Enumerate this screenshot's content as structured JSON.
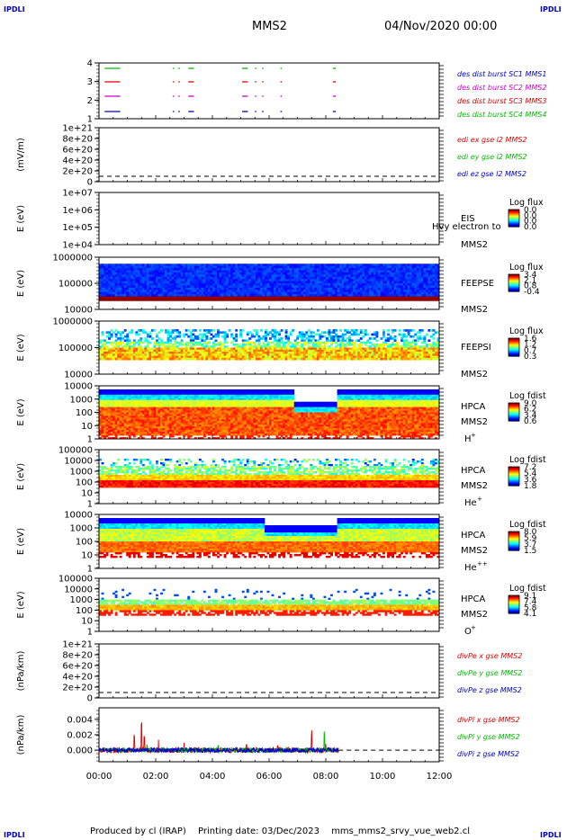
{
  "header": {
    "title": "MMS2",
    "date": "04/Nov/2020 00:00"
  },
  "corner_label": "IPDLI",
  "footer": {
    "produced": "Produced by cl (IRAP)",
    "printing": "Printing date: 03/Dec/2023",
    "file": "mms_mms2_srvy_vue_web2.cl"
  },
  "time_axis": {
    "labels": [
      "00:00",
      "02:00",
      "04:00",
      "06:00",
      "08:00",
      "10:00",
      "12:00"
    ],
    "range_hours": [
      0,
      12
    ]
  },
  "chart_data": [
    {
      "type": "line",
      "title": "",
      "ylabel": "",
      "ytick_labels": [
        "4",
        "3",
        "2",
        "1"
      ],
      "legend": [
        {
          "label": "des dist burst SC1 MMS1",
          "color": "#0000cc"
        },
        {
          "label": "des dist burst SC2 MMS2",
          "color": "#cc00cc"
        },
        {
          "label": "des dist burst SC3 MMS3",
          "color": "#dd0000"
        },
        {
          "label": "des dist burst SC4 MMS4",
          "color": "#00bb00"
        }
      ],
      "segments_hours": [
        [
          0.2,
          0.75
        ],
        [
          2.6,
          2.65
        ],
        [
          2.8,
          2.85
        ],
        [
          3.15,
          3.35
        ],
        [
          5.05,
          5.25
        ],
        [
          5.5,
          5.55
        ],
        [
          5.75,
          5.8
        ],
        [
          6.4,
          6.45
        ],
        [
          8.25,
          8.35
        ]
      ]
    },
    {
      "type": "line",
      "ylabel": "(mV/m)",
      "ytick_labels": [
        "1e+21",
        "8e+20",
        "6e+20",
        "4e+20",
        "2e+20",
        "0"
      ],
      "legend": [
        {
          "label": "edi ex gse l2 MMS2",
          "color": "#dd0000"
        },
        {
          "label": "edi ey gse l2 MMS2",
          "color": "#00bb00"
        },
        {
          "label": "edi ez gse l2 MMS2",
          "color": "#0000cc"
        }
      ]
    },
    {
      "type": "heatmap",
      "ylabel": "E (eV)",
      "ytick_labels": [
        "1e+07",
        "1e+06",
        "1e+05",
        "1e+04"
      ],
      "instrument": [
        "EIS",
        "MMS2"
      ],
      "overlay_text": "Hvy electron to",
      "colorbar": {
        "title": "Log flux",
        "ticks": [
          "0.0",
          "0.0",
          "0.0",
          "0.0"
        ]
      }
    },
    {
      "type": "heatmap",
      "ylabel": "E (eV)",
      "ytick_labels": [
        "1000000",
        "100000",
        "10000"
      ],
      "instrument": [
        "FEEPSE",
        "MMS2"
      ],
      "colorbar": {
        "title": "Log flux",
        "ticks": [
          "3.4",
          "2.1",
          "0.8",
          "-0.4"
        ]
      }
    },
    {
      "type": "heatmap",
      "ylabel": "E (eV)",
      "ytick_labels": [
        "1000000",
        "100000",
        "10000"
      ],
      "instrument": [
        "FEEPSI",
        "MMS2"
      ],
      "colorbar": {
        "title": "Log flux",
        "ticks": [
          "1.6",
          "1.2",
          "0.7",
          "0.3"
        ]
      }
    },
    {
      "type": "heatmap",
      "ylabel": "E (eV)",
      "ytick_labels": [
        "10000",
        "1000",
        "100",
        "10",
        "1"
      ],
      "instrument": [
        "HPCA",
        "MMS2"
      ],
      "species": "H",
      "species_charge": "+",
      "colorbar": {
        "title": "Log fdist",
        "ticks": [
          "9.0",
          "6.2",
          "3.4",
          "0.6"
        ]
      }
    },
    {
      "type": "heatmap",
      "ylabel": "E (eV)",
      "ytick_labels": [
        "100000",
        "10000",
        "1000",
        "100",
        "10",
        "1"
      ],
      "instrument": [
        "HPCA",
        "MMS2"
      ],
      "species": "He",
      "species_charge": "+",
      "colorbar": {
        "title": "Log fdist",
        "ticks": [
          "7.2",
          "5.4",
          "3.6",
          "1.8"
        ]
      }
    },
    {
      "type": "heatmap",
      "ylabel": "E (eV)",
      "ytick_labels": [
        "10000",
        "1000",
        "100",
        "10",
        "1"
      ],
      "instrument": [
        "HPCA",
        "MMS2"
      ],
      "species": "He",
      "species_charge": "++",
      "colorbar": {
        "title": "Log fdist",
        "ticks": [
          "8.0",
          "5.9",
          "3.7",
          "1.5"
        ]
      }
    },
    {
      "type": "heatmap",
      "ylabel": "E (eV)",
      "ytick_labels": [
        "100000",
        "10000",
        "1000",
        "100",
        "10",
        "1"
      ],
      "instrument": [
        "HPCA",
        "MMS2"
      ],
      "species": "O",
      "species_charge": "+",
      "colorbar": {
        "title": "Log fdist",
        "ticks": [
          "9.1",
          "7.4",
          "5.8",
          "4.1"
        ]
      }
    },
    {
      "type": "line",
      "ylabel": "(nPa/km)",
      "ytick_labels": [
        "1e+21",
        "8e+20",
        "6e+20",
        "4e+20",
        "2e+20",
        "0"
      ],
      "legend": [
        {
          "label": "divPe x gse MMS2",
          "color": "#dd0000"
        },
        {
          "label": "divPe y gse MMS2",
          "color": "#00bb00"
        },
        {
          "label": "divPe z gse MMS2",
          "color": "#0000cc"
        }
      ]
    },
    {
      "type": "line",
      "ylabel": "(nPa/km)",
      "ytick_labels": [
        "0.004",
        "0.002",
        "0.000"
      ],
      "ylim": [
        -0.0015,
        0.0055
      ],
      "data_end_hours": 8.45,
      "legend": [
        {
          "label": "divPi x gse MMS2",
          "color": "#dd0000"
        },
        {
          "label": "divPi y gse MMS2",
          "color": "#00bb00"
        },
        {
          "label": "divPi z gse MMS2",
          "color": "#0000cc"
        }
      ]
    }
  ]
}
